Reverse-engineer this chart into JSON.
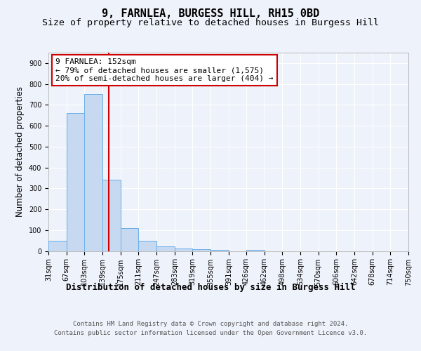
{
  "title": "9, FARNLEA, BURGESS HILL, RH15 0BD",
  "subtitle": "Size of property relative to detached houses in Burgess Hill",
  "xlabel": "Distribution of detached houses by size in Burgess Hill",
  "ylabel": "Number of detached properties",
  "bin_edges": [
    31,
    67,
    103,
    139,
    175,
    211,
    247,
    283,
    319,
    355,
    391,
    426,
    462,
    498,
    534,
    570,
    606,
    642,
    678,
    714,
    750
  ],
  "bar_heights": [
    50,
    660,
    750,
    340,
    108,
    50,
    22,
    12,
    8,
    4,
    0,
    5,
    0,
    0,
    0,
    0,
    0,
    0,
    0,
    0
  ],
  "bar_color": "#c6d9f0",
  "bar_edge_color": "#6aaee8",
  "red_line_x": 152,
  "ylim": [
    0,
    950
  ],
  "yticks": [
    0,
    100,
    200,
    300,
    400,
    500,
    600,
    700,
    800,
    900
  ],
  "annotation_line1": "9 FARNLEA: 152sqm",
  "annotation_line2": "← 79% of detached houses are smaller (1,575)",
  "annotation_line3": "20% of semi-detached houses are larger (404) →",
  "annotation_box_facecolor": "#ffffff",
  "annotation_box_edgecolor": "#cc0000",
  "footer_line1": "Contains HM Land Registry data © Crown copyright and database right 2024.",
  "footer_line2": "Contains public sector information licensed under the Open Government Licence v3.0.",
  "background_color": "#eef2fa",
  "plot_facecolor": "#eef2fa",
  "grid_color": "#ffffff",
  "title_fontsize": 11,
  "subtitle_fontsize": 9.5,
  "tick_fontsize": 7,
  "ylabel_fontsize": 8.5,
  "xlabel_fontsize": 9,
  "annotation_fontsize": 8,
  "footer_fontsize": 6.5
}
